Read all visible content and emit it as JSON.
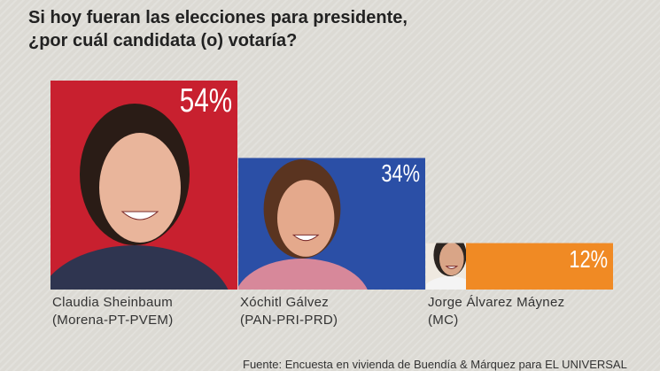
{
  "title_line1": "Si hoy fueran las elecciones para presidente,",
  "title_line2": "¿por cuál candidata (o) votaría?",
  "source": "Fuente: Encuesta en vivienda de Buendía & Márquez para EL UNIVERSAL",
  "colors": {
    "background": "#dcdad4",
    "sheinbaum": "#c8202f",
    "galvez": "#2b4fa6",
    "maynez": "#f08a24"
  },
  "chart_data": {
    "type": "bar",
    "title": "Si hoy fueran las elecciones para presidente, ¿por cuál candidata (o) votaría?",
    "categories": [
      "Claudia Sheinbaum (Morena-PT-PVEM)",
      "Xóchitl Gálvez (PAN-PRI-PRD)",
      "Jorge Álvarez Máynez (MC)"
    ],
    "values": [
      54,
      34,
      12
    ],
    "unit": "%",
    "ylim": [
      0,
      54
    ],
    "grid": false,
    "bars": [
      {
        "name": "Claudia Sheinbaum",
        "party": "(Morena-PT-PVEM)",
        "value": 54,
        "label": "54%",
        "color": "#c8202f"
      },
      {
        "name": "Xóchitl Gálvez",
        "party": "(PAN-PRI-PRD)",
        "value": 34,
        "label": "34%",
        "color": "#2b4fa6"
      },
      {
        "name": "Jorge Álvarez Máynez",
        "party": "(MC)",
        "value": 12,
        "label": "12%",
        "color": "#f08a24"
      }
    ]
  }
}
